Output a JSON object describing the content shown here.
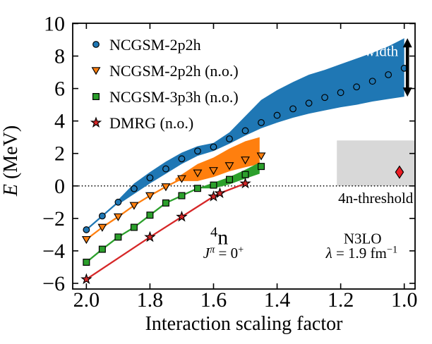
{
  "figure": {
    "background": "#ffffff"
  },
  "chart_data": {
    "type": "line",
    "title": "",
    "xlabel": "Interaction scaling factor",
    "ylabel_parts": [
      {
        "t": "E",
        "i": 1
      },
      {
        "t": " (MeV)"
      }
    ],
    "xlim": [
      2.043,
      0.966
    ],
    "ylim": [
      -6.35,
      10.02
    ],
    "x_ticks": [
      2.0,
      1.8,
      1.6,
      1.4,
      1.2,
      1.0
    ],
    "y_ticks": [
      10,
      8,
      6,
      4,
      2,
      0,
      -2,
      -4,
      -6
    ],
    "threshold_line": {
      "y": 0,
      "style": "dotted",
      "color": "#000000"
    },
    "gray_box": {
      "x1": 1.212,
      "x2": 0.966,
      "y1": 0,
      "y2": 2.8,
      "color": "#d8d8d8"
    },
    "series": [
      {
        "id": "ncgsm-2p2h",
        "name": "NCGSM-2p2h",
        "color": "#1f77b4",
        "marker": "circle",
        "x": [
          2.0,
          1.95,
          1.9,
          1.85,
          1.8,
          1.75,
          1.7,
          1.65,
          1.6,
          1.55,
          1.5,
          1.45,
          1.4,
          1.35,
          1.3,
          1.25,
          1.2,
          1.15,
          1.1,
          1.05,
          1.0
        ],
        "y": [
          -2.7,
          -1.85,
          -1.0,
          -0.17,
          0.5,
          1.05,
          1.67,
          2.15,
          2.4,
          2.9,
          3.4,
          3.9,
          4.35,
          4.75,
          5.1,
          5.45,
          5.75,
          6.1,
          6.45,
          6.85,
          7.25
        ],
        "line_to_index": 20,
        "band": {
          "x": [
            1.9,
            1.85,
            1.8,
            1.75,
            1.7,
            1.65,
            1.6,
            1.55,
            1.5,
            1.45,
            1.4,
            1.35,
            1.3,
            1.25,
            1.2,
            1.15,
            1.1,
            1.05,
            1.0
          ],
          "top": [
            -0.85,
            0.15,
            0.85,
            1.5,
            2.05,
            2.45,
            2.65,
            3.3,
            4.3,
            5.3,
            5.9,
            6.4,
            6.85,
            7.15,
            7.5,
            7.85,
            8.2,
            8.6,
            9.1
          ],
          "bottom": [
            -1.15,
            -0.5,
            0.15,
            0.75,
            1.35,
            1.85,
            2.15,
            2.6,
            3.1,
            3.55,
            3.9,
            4.2,
            4.45,
            4.65,
            4.85,
            5.0,
            5.2,
            5.35,
            5.5
          ]
        }
      },
      {
        "id": "ncgsm-2p2h-no",
        "name": "NCGSM-2p2h (n.o.)",
        "color": "#ff7f0e",
        "marker": "triangle-down",
        "x": [
          2.0,
          1.95,
          1.9,
          1.85,
          1.8,
          1.75,
          1.7,
          1.65,
          1.6,
          1.55,
          1.5,
          1.45
        ],
        "y": [
          -3.3,
          -2.55,
          -1.9,
          -1.2,
          -0.6,
          -0.05,
          0.45,
          0.8,
          0.95,
          1.25,
          1.6,
          1.85
        ],
        "line_to_index": 6,
        "band": {
          "x": [
            1.72,
            1.65,
            1.6,
            1.55,
            1.5,
            1.455
          ],
          "top": [
            0.45,
            1.35,
            1.75,
            2.3,
            2.75,
            3.0
          ],
          "bottom": [
            0.3,
            0.3,
            0.55,
            0.9,
            1.15,
            1.35
          ]
        }
      },
      {
        "id": "ncgsm-3p3h-no",
        "name": "NCGSM-3p3h (n.o.)",
        "color": "#2ca02c",
        "marker": "square",
        "x": [
          2.0,
          1.95,
          1.9,
          1.85,
          1.8,
          1.75,
          1.7,
          1.65,
          1.6,
          1.55,
          1.5,
          1.45
        ],
        "y": [
          -4.7,
          -3.9,
          -3.15,
          -2.55,
          -1.8,
          -1.05,
          -0.6,
          -0.15,
          0.05,
          0.4,
          0.7,
          1.2
        ],
        "line_to_index": 7,
        "band": {
          "x": [
            1.645,
            1.6,
            1.55,
            1.5,
            1.455
          ],
          "top": [
            -0.1,
            0.2,
            0.55,
            1.0,
            1.45
          ],
          "bottom": [
            -0.15,
            -0.15,
            0.1,
            0.45,
            0.75
          ]
        }
      },
      {
        "id": "dmrg-no",
        "name": "DMRG (n.o.)",
        "color": "#d62728",
        "marker": "star",
        "x": [
          2.0,
          1.8,
          1.7,
          1.6,
          1.58,
          1.5
        ],
        "y": [
          -5.75,
          -3.15,
          -1.9,
          -0.65,
          -0.45,
          0.15
        ],
        "line_to_index": 5
      }
    ],
    "extra_points": [
      {
        "id": "threshold-diamond",
        "marker": "diamond",
        "color": "#ec1c24",
        "x": 1.015,
        "y": 0.85
      }
    ],
    "width_arrow": {
      "x": 0.99,
      "y_top": 9.1,
      "y_bottom": 5.5,
      "label": "width",
      "label_x": 1.072,
      "label_y": 8.0,
      "label_color": "#ffffff"
    },
    "annotations": [
      {
        "id": "threshold-label",
        "x": 0.972,
        "y": -1.05,
        "anchor": "end",
        "size": 21,
        "parts": [
          {
            "t": "4n-threshold"
          }
        ]
      },
      {
        "id": "nucleus-label",
        "x": 1.582,
        "y": -3.6,
        "anchor": "middle",
        "size": 30,
        "parts": [
          {
            "t": "4",
            "sup": 1
          },
          {
            "t": "n"
          }
        ]
      },
      {
        "id": "jpi-label",
        "x": 1.569,
        "y": -4.45,
        "anchor": "middle",
        "size": 21,
        "parts": [
          {
            "t": "J",
            "i": 1
          },
          {
            "t": "π",
            "sup": 1,
            "i": 1
          },
          {
            "t": " = 0"
          },
          {
            "t": "+",
            "sup": 1
          }
        ]
      },
      {
        "id": "interaction-name-label",
        "x": 1.131,
        "y": -3.55,
        "anchor": "middle",
        "size": 21,
        "parts": [
          {
            "t": "N3LO"
          }
        ]
      },
      {
        "id": "lambda-label",
        "x": 1.134,
        "y": -4.45,
        "anchor": "middle",
        "size": 21,
        "parts": [
          {
            "t": "λ",
            "i": 1
          },
          {
            "t": " = 1.9 fm"
          },
          {
            "t": "−1",
            "sup": 1
          }
        ]
      }
    ],
    "legend": {
      "marker_x": 136,
      "text_x": 155,
      "ys": [
        63,
        100,
        137,
        174
      ],
      "font_size": 22
    }
  }
}
